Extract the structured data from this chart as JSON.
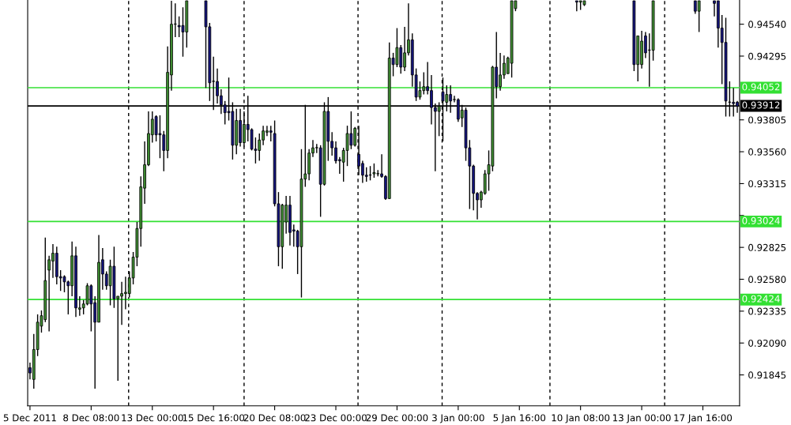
{
  "chart_data": {
    "type": "candlestick",
    "categories": [
      "5 Dec 2011",
      null,
      null,
      null,
      null,
      null,
      null,
      null,
      null,
      null,
      null,
      null,
      null,
      null,
      null,
      null,
      "8 Dec 08:00",
      null,
      null,
      null,
      null,
      null,
      null,
      null,
      null,
      null,
      null,
      null,
      null,
      null,
      null,
      null,
      "13 Dec 00:00",
      null,
      null,
      null,
      null,
      null,
      null,
      null,
      null,
      null,
      null,
      null,
      null,
      null,
      null,
      null,
      "15 Dec 16:00",
      null,
      null,
      null,
      null,
      null,
      null,
      null,
      null,
      null,
      null,
      null,
      null,
      null,
      null,
      null,
      "20 Dec 08:00",
      null,
      null,
      null,
      null,
      null,
      null,
      null,
      null,
      null,
      null,
      null,
      null,
      null,
      null,
      null,
      "23 Dec 00:00",
      null,
      null,
      null,
      null,
      null,
      null,
      null,
      null,
      null,
      null,
      null,
      null,
      null,
      null,
      null,
      "29 Dec 00:00",
      null,
      null,
      null,
      null,
      null,
      null,
      null,
      null,
      null,
      null,
      null,
      null,
      null,
      null,
      null,
      "3 Jan 00:00",
      null,
      null,
      null,
      null,
      null,
      null,
      null,
      null,
      null,
      null,
      null,
      null,
      null,
      null,
      null,
      "5 Jan 16:00",
      null,
      null,
      null,
      null,
      null,
      null,
      null,
      null,
      null,
      null,
      null,
      null,
      null,
      null,
      null,
      "10 Jan 08:00",
      null,
      null,
      null,
      null,
      null,
      null,
      null,
      null,
      null,
      null,
      null,
      null,
      null,
      null,
      null,
      "13 Jan 00:00",
      null,
      null,
      null,
      null,
      null,
      null,
      null,
      null,
      null,
      null,
      null,
      null,
      null,
      null,
      null,
      "17 Jan 16:00",
      null,
      null,
      null,
      null,
      null,
      null,
      null,
      null,
      null
    ],
    "ohlc": [
      [
        0.919,
        0.9194,
        0.9181,
        0.9186
      ],
      [
        0.9181,
        0.9216,
        0.9174,
        0.9204
      ],
      [
        0.9204,
        0.9231,
        0.9199,
        0.9225
      ],
      [
        0.9222,
        0.9234,
        0.9217,
        0.923
      ],
      [
        0.9227,
        0.929,
        0.9225,
        0.9257
      ],
      [
        0.9265,
        0.9276,
        0.9218,
        0.9273
      ],
      [
        0.9272,
        0.9285,
        0.9259,
        0.9278
      ],
      [
        0.9278,
        0.9283,
        0.9254,
        0.926
      ],
      [
        0.926,
        0.9265,
        0.9249,
        0.9259
      ],
      [
        0.926,
        0.9261,
        0.9248,
        0.9256
      ],
      [
        0.9256,
        0.9257,
        0.9231,
        0.9253
      ],
      [
        0.9253,
        0.9287,
        0.9245,
        0.9276
      ],
      [
        0.9276,
        0.9283,
        0.9229,
        0.9236
      ],
      [
        0.9235,
        0.9245,
        0.923,
        0.9236
      ],
      [
        0.9236,
        0.9242,
        0.9231,
        0.9239
      ],
      [
        0.9239,
        0.9255,
        0.9238,
        0.9253
      ],
      [
        0.9253,
        0.9254,
        0.9218,
        0.9239
      ],
      [
        0.924,
        0.9245,
        0.9174,
        0.9225
      ],
      [
        0.9225,
        0.9292,
        0.9225,
        0.9271
      ],
      [
        0.9273,
        0.9282,
        0.925,
        0.9262
      ],
      [
        0.9262,
        0.9264,
        0.925,
        0.9253
      ],
      [
        0.9253,
        0.9273,
        0.9238,
        0.9268
      ],
      [
        0.9268,
        0.9283,
        0.9236,
        0.9243
      ],
      [
        0.9243,
        0.9245,
        0.918,
        0.9245
      ],
      [
        0.9245,
        0.9256,
        0.9223,
        0.9247
      ],
      [
        0.9247,
        0.926,
        0.9235,
        0.9248
      ],
      [
        0.9247,
        0.9264,
        0.9244,
        0.9259
      ],
      [
        0.9259,
        0.9279,
        0.9254,
        0.9275
      ],
      [
        0.9275,
        0.9302,
        0.9268,
        0.9297
      ],
      [
        0.9297,
        0.9337,
        0.9283,
        0.9329
      ],
      [
        0.9328,
        0.9364,
        0.9316,
        0.9346
      ],
      [
        0.9346,
        0.9387,
        0.9345,
        0.937
      ],
      [
        0.9369,
        0.9387,
        0.9363,
        0.9381
      ],
      [
        0.9383,
        0.9384,
        0.9364,
        0.9369
      ],
      [
        0.937,
        0.9384,
        0.9351,
        0.9369
      ],
      [
        0.9369,
        0.9372,
        0.9341,
        0.9357
      ],
      [
        0.9357,
        0.9437,
        0.9351,
        0.9417
      ],
      [
        0.9415,
        0.9472,
        0.9403,
        0.9454
      ],
      [
        0.9454,
        0.947,
        0.9444,
        0.9454
      ],
      [
        0.9453,
        0.946,
        0.9444,
        0.9452
      ],
      [
        0.9453,
        0.9467,
        0.9429,
        0.9448
      ],
      [
        0.9448,
        0.9472,
        0.9436,
        0.9472
      ],
      null,
      null,
      null,
      null,
      [
        0.9472,
        0.9472,
        0.9405,
        0.9452
      ],
      [
        0.9452,
        0.9455,
        0.9395,
        0.9409
      ],
      [
        0.941,
        0.9429,
        0.9388,
        0.941
      ],
      [
        0.941,
        0.942,
        0.9393,
        0.9399
      ],
      [
        0.9399,
        0.9404,
        0.9385,
        0.9392
      ],
      [
        0.9392,
        0.9395,
        0.9377,
        0.9386
      ],
      [
        0.9387,
        0.9413,
        0.938,
        0.9386
      ],
      [
        0.9387,
        0.9394,
        0.935,
        0.9361
      ],
      [
        0.9361,
        0.9389,
        0.9354,
        0.938
      ],
      [
        0.938,
        0.9389,
        0.936,
        0.9363
      ],
      [
        0.9363,
        0.9387,
        0.936,
        0.9377
      ],
      [
        0.9377,
        0.9399,
        0.9364,
        0.9373
      ],
      [
        0.9373,
        0.9374,
        0.9357,
        0.9358
      ],
      [
        0.9358,
        0.9367,
        0.9347,
        0.9357
      ],
      [
        0.9357,
        0.937,
        0.9349,
        0.9365
      ],
      [
        0.9365,
        0.9376,
        0.9361,
        0.9372
      ],
      [
        0.9371,
        0.9376,
        0.9368,
        0.9372
      ],
      [
        0.9372,
        0.9376,
        0.9364,
        0.9371
      ],
      [
        0.937,
        0.938,
        0.9314,
        0.9316
      ],
      [
        0.9316,
        0.9325,
        0.9268,
        0.9283
      ],
      [
        0.9283,
        0.9316,
        0.9266,
        0.9315
      ],
      [
        0.9302,
        0.9322,
        0.9293,
        0.9315
      ],
      [
        0.9315,
        0.9322,
        0.9284,
        0.9294
      ],
      [
        0.9296,
        0.93,
        0.9283,
        0.9295
      ],
      [
        0.9295,
        0.9296,
        0.9262,
        0.9283
      ],
      [
        0.9283,
        0.9358,
        0.9244,
        0.9335
      ],
      [
        0.9335,
        0.9392,
        0.9329,
        0.9339
      ],
      [
        0.9339,
        0.9358,
        0.9334,
        0.9355
      ],
      [
        0.9355,
        0.9365,
        0.9352,
        0.9359
      ],
      [
        0.9359,
        0.9362,
        0.9355,
        0.9359
      ],
      [
        0.9359,
        0.9361,
        0.9306,
        0.9331
      ],
      [
        0.9331,
        0.9394,
        0.933,
        0.9387
      ],
      [
        0.9387,
        0.9398,
        0.9349,
        0.9364
      ],
      [
        0.9364,
        0.9371,
        0.9353,
        0.9359
      ],
      [
        0.9359,
        0.9364,
        0.9347,
        0.9349
      ],
      [
        0.935,
        0.9352,
        0.9339,
        0.9349
      ],
      [
        0.9348,
        0.9359,
        0.9333,
        0.9357
      ],
      [
        0.9357,
        0.9376,
        0.9345,
        0.937
      ],
      [
        0.937,
        0.9387,
        0.9358,
        0.9361
      ],
      [
        0.9361,
        0.9375,
        0.936,
        0.9374
      ],
      [
        0.9354,
        0.9376,
        0.9338,
        0.9345
      ],
      [
        0.9347,
        0.9349,
        0.9332,
        0.9338
      ],
      [
        0.9338,
        0.9344,
        0.9333,
        0.9337
      ],
      [
        0.9338,
        0.9345,
        0.9334,
        0.9338
      ],
      [
        0.9339,
        0.9347,
        0.9336,
        0.934
      ],
      [
        0.9339,
        0.9342,
        0.9337,
        0.9339
      ],
      [
        0.9339,
        0.9354,
        0.9336,
        0.9337
      ],
      [
        0.9337,
        0.9338,
        0.9319,
        0.932
      ],
      [
        0.932,
        0.944,
        0.932,
        0.9428
      ],
      [
        0.9428,
        0.9432,
        0.9414,
        0.9423
      ],
      [
        0.9423,
        0.9451,
        0.9421,
        0.9436
      ],
      [
        0.9436,
        0.9438,
        0.9416,
        0.9421
      ],
      [
        0.9421,
        0.9452,
        0.9418,
        0.9432
      ],
      [
        0.9432,
        0.947,
        0.943,
        0.9442
      ],
      [
        0.9442,
        0.9447,
        0.9406,
        0.9415
      ],
      [
        0.9415,
        0.942,
        0.9395,
        0.9398
      ],
      [
        0.9398,
        0.941,
        0.9396,
        0.9403
      ],
      [
        0.9403,
        0.9417,
        0.94,
        0.9406
      ],
      [
        0.9406,
        0.9425,
        0.94,
        0.9403
      ],
      [
        0.9403,
        0.9415,
        0.9377,
        0.939
      ],
      [
        0.939,
        0.9393,
        0.9341,
        0.9387
      ],
      [
        0.9387,
        0.9394,
        0.9368,
        0.9391
      ],
      [
        0.9402,
        0.9413,
        0.9364,
        0.9395
      ],
      [
        0.9394,
        0.9407,
        0.9387,
        0.94
      ],
      [
        0.94,
        0.9407,
        0.9386,
        0.9395
      ],
      [
        0.9396,
        0.9399,
        0.9394,
        0.9396
      ],
      [
        0.9396,
        0.9397,
        0.9379,
        0.9381
      ],
      [
        0.9382,
        0.9392,
        0.9375,
        0.9388
      ],
      [
        0.9388,
        0.939,
        0.9349,
        0.9359
      ],
      [
        0.9359,
        0.9365,
        0.9312,
        0.9345
      ],
      [
        0.9345,
        0.9346,
        0.9311,
        0.9324
      ],
      [
        0.9324,
        0.9325,
        0.9304,
        0.9319
      ],
      [
        0.9319,
        0.9326,
        0.9313,
        0.9325
      ],
      [
        0.9324,
        0.9342,
        0.9323,
        0.9339
      ],
      [
        0.9339,
        0.9357,
        0.9326,
        0.9346
      ],
      [
        0.9345,
        0.9422,
        0.9341,
        0.9421
      ],
      [
        0.9421,
        0.9448,
        0.9397,
        0.9406
      ],
      [
        0.9406,
        0.9432,
        0.9403,
        0.9415
      ],
      [
        0.9415,
        0.943,
        0.9412,
        0.9424
      ],
      [
        0.9416,
        0.9429,
        0.9416,
        0.9428
      ],
      [
        0.9424,
        0.9472,
        0.9413,
        0.9472
      ],
      [
        0.9466,
        0.9472,
        0.9464,
        0.9472
      ],
      null,
      null,
      null,
      null,
      null,
      null,
      null,
      null,
      null,
      null,
      null,
      null,
      null,
      null,
      null,
      [
        0.9472,
        0.9472,
        0.9464,
        0.9471
      ],
      [
        0.9471,
        0.9472,
        0.9465,
        0.9472
      ],
      [
        0.9469,
        0.9472,
        0.9468,
        0.9472
      ],
      null,
      null,
      null,
      null,
      null,
      null,
      null,
      null,
      null,
      null,
      null,
      null,
      [
        0.9472,
        0.9472,
        0.9418,
        0.9423
      ],
      [
        0.9423,
        0.9445,
        0.941,
        0.9445
      ],
      [
        0.9423,
        0.9449,
        0.942,
        0.9441
      ],
      [
        0.9445,
        0.9448,
        0.9428,
        0.9432
      ],
      [
        0.9434,
        0.9447,
        0.9406,
        0.9434
      ],
      [
        0.9434,
        0.9472,
        0.9426,
        0.9472
      ],
      null,
      null,
      null,
      null,
      null,
      null,
      null,
      null,
      null,
      null,
      [
        0.9472,
        0.9472,
        0.9462,
        0.9464
      ],
      [
        0.9464,
        0.9472,
        0.9448,
        0.9472
      ],
      null,
      null,
      null,
      [
        0.9472,
        0.9472,
        0.946,
        0.947
      ],
      [
        0.9472,
        0.9472,
        0.9436,
        0.9451
      ],
      [
        0.9451,
        0.9461,
        0.9408,
        0.944
      ],
      [
        0.944,
        0.9459,
        0.9383,
        0.9395
      ],
      [
        0.9394,
        0.941,
        0.9383,
        0.9394
      ],
      [
        0.9394,
        0.9405,
        0.9383,
        0.9393
      ],
      [
        0.9394,
        0.9395,
        0.9386,
        0.9391
      ]
    ],
    "colors": [
      "#14147e",
      "#3f8f32",
      "#3f8f32",
      "#3f8f32",
      "#3f8f32",
      "#3f8f32",
      "#3f8f32",
      "#14147e",
      "#14147e",
      "#14147e",
      "#14147e",
      "#3f8f32",
      "#14147e",
      "#3f8f32",
      "#3f8f32",
      "#3f8f32",
      "#14147e",
      "#14147e",
      "#3f8f32",
      "#14147e",
      "#14147e",
      "#3f8f32",
      "#14147e",
      "#3f8f32",
      "#3f8f32",
      "#3f8f32",
      "#3f8f32",
      "#3f8f32",
      "#3f8f32",
      "#3f8f32",
      "#3f8f32",
      "#3f8f32",
      "#3f8f32",
      "#14147e",
      "#14147e",
      "#14147e",
      "#3f8f32",
      "#3f8f32",
      "#3f8f32",
      "#14147e",
      "#14147e",
      "#3f8f32",
      null,
      null,
      null,
      null,
      "#14147e",
      "#14147e",
      "#3f8f32",
      "#14147e",
      "#14147e",
      "#14147e",
      "#14147e",
      "#14147e",
      "#3f8f32",
      "#14147e",
      "#3f8f32",
      "#14147e",
      "#14147e",
      "#14147e",
      "#3f8f32",
      "#3f8f32",
      "#3f8f32",
      "#14147e",
      "#14147e",
      "#14147e",
      "#3f8f32",
      "#3f8f32",
      "#14147e",
      "#14147e",
      "#14147e",
      "#3f8f32",
      "#3f8f32",
      "#3f8f32",
      "#3f8f32",
      "#3f8f32",
      "#14147e",
      "#3f8f32",
      "#14147e",
      "#14147e",
      "#14147e",
      "#14147e",
      "#3f8f32",
      "#3f8f32",
      "#14147e",
      "#3f8f32",
      "#14147e",
      "#14147e",
      "#14147e",
      "#3f8f32",
      "#3f8f32",
      "#3f8f32",
      "#14147e",
      "#14147e",
      "#3f8f32",
      "#14147e",
      "#3f8f32",
      "#14147e",
      "#3f8f32",
      "#3f8f32",
      "#14147e",
      "#14147e",
      "#3f8f32",
      "#3f8f32",
      "#14147e",
      "#14147e",
      "#14147e",
      "#3f8f32",
      "#14147e",
      "#3f8f32",
      "#14147e",
      "#3f8f32",
      "#14147e",
      "#3f8f32",
      "#14147e",
      "#14147e",
      "#14147e",
      "#14147e",
      "#3f8f32",
      "#3f8f32",
      "#3f8f32",
      "#3f8f32",
      "#14147e",
      "#3f8f32",
      "#3f8f32",
      "#3f8f32",
      "#3f8f32",
      "#3f8f32",
      null,
      null,
      null,
      null,
      null,
      null,
      null,
      null,
      null,
      null,
      null,
      null,
      null,
      null,
      null,
      "#14147e",
      "#3f8f32",
      "#3f8f32",
      null,
      null,
      null,
      null,
      null,
      null,
      null,
      null,
      null,
      null,
      null,
      null,
      "#14147e",
      "#3f8f32",
      "#3f8f32",
      "#14147e",
      "#3f8f32",
      "#3f8f32",
      null,
      null,
      null,
      null,
      null,
      null,
      null,
      null,
      null,
      null,
      "#14147e",
      "#3f8f32",
      null,
      null,
      null,
      "#14147e",
      "#14147e",
      "#14147e",
      "#14147e",
      "#3f8f32",
      "#14147e",
      "#14147e"
    ],
    "ylim": [
      0.91607,
      0.94726
    ],
    "yticks": [
      {
        "value": 0.9454,
        "label": "0.94540"
      },
      0.94295,
      0.93805,
      {
        "value": 0.9356,
        "label": "0.93560"
      },
      0.93315,
      {
        "value": 0.9307,
        "label": null
      },
      0.92825,
      {
        "value": 0.9258,
        "label": "0.92580"
      },
      0.92335,
      {
        "value": 0.9209,
        "label": "0.92090"
      },
      0.91845
    ],
    "ref_lines": [
      {
        "axis": "y",
        "value": 0.94052,
        "label": "0.94052",
        "color": "#33e033",
        "line_style": "solid"
      },
      {
        "axis": "y",
        "value": 0.93912,
        "label": "0.93912",
        "color": "#000000",
        "line_style": "solid"
      },
      {
        "axis": "y",
        "value": 0.93024,
        "label": "0.93024",
        "color": "#33e033",
        "line_style": "solid"
      },
      {
        "axis": "y",
        "value": 0.92424,
        "label": "0.92424",
        "color": "#33e033",
        "line_style": "solid"
      }
    ],
    "grid": false
  }
}
